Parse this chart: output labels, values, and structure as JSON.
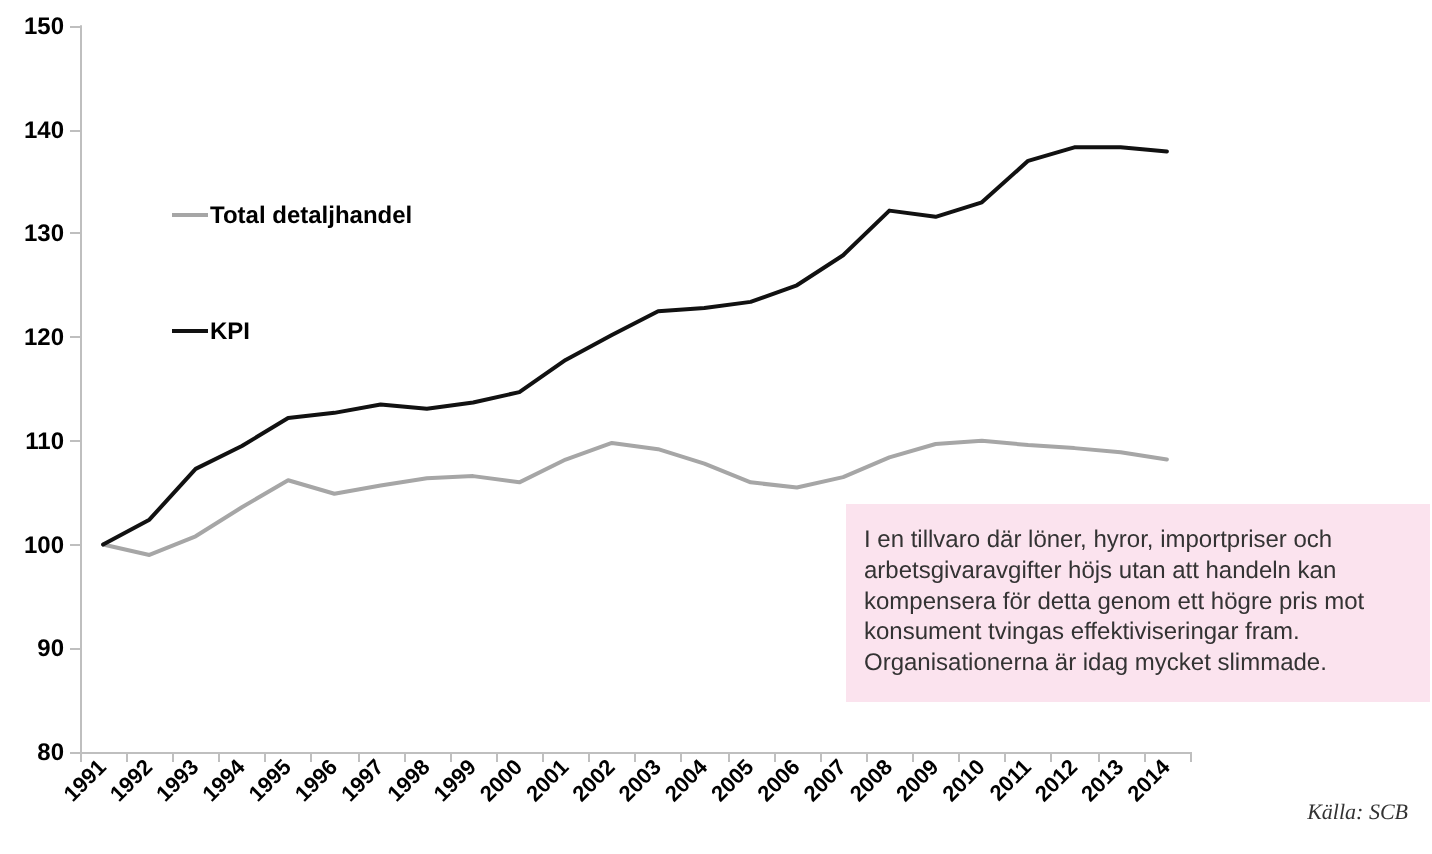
{
  "chart_data": {
    "type": "line",
    "categories": [
      "1991",
      "1992",
      "1993",
      "1994",
      "1995",
      "1996",
      "1997",
      "1998",
      "1999",
      "2000",
      "2001",
      "2002",
      "2003",
      "2004",
      "2005",
      "2006",
      "2007",
      "2008",
      "2009",
      "2010",
      "2011",
      "2012",
      "2013",
      "2014"
    ],
    "series": [
      {
        "name": "Total detaljhandel",
        "color": "#a6a6a6",
        "values": [
          100,
          99.0,
          100.8,
          103.6,
          106.2,
          104.9,
          105.7,
          106.4,
          106.6,
          106.0,
          108.2,
          109.8,
          109.2,
          107.8,
          106.0,
          105.5,
          106.5,
          108.4,
          109.7,
          110.0,
          109.6,
          109.3,
          108.9,
          108.2
        ]
      },
      {
        "name": "KPI",
        "color": "#111111",
        "values": [
          100,
          102.4,
          107.3,
          109.5,
          112.2,
          112.7,
          113.5,
          113.1,
          113.7,
          114.7,
          117.8,
          120.2,
          122.5,
          122.8,
          123.4,
          125.0,
          127.9,
          132.2,
          131.6,
          133.0,
          137.0,
          138.3,
          138.3,
          137.9
        ]
      }
    ],
    "ylim": [
      80,
      150
    ],
    "yticks": [
      80,
      90,
      100,
      110,
      120,
      130,
      140,
      150
    ],
    "legend": "top left",
    "marker": "none",
    "line_style": "solid",
    "annotations": [
      "I en tillvaro där löner, hyror, importpriser och arbetsgivaravgifter höjs utan att handeln kan kompensera för detta genom ett högre pris mot konsument tvingas effektiviseringar fram. Organisationerna är idag mycket slimmade.",
      "Källa: SCB"
    ]
  }
}
